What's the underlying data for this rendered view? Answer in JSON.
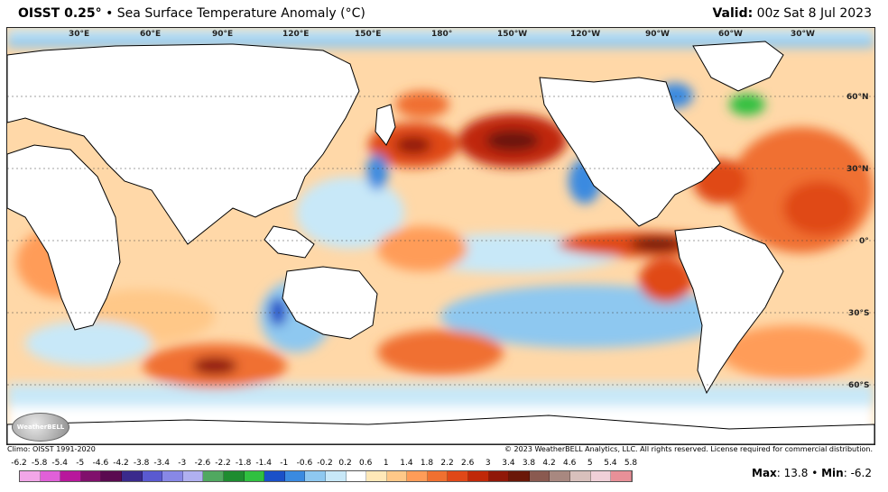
{
  "header": {
    "product": "OISST 0.25",
    "degree_symbol": "°",
    "bullet": "•",
    "subtitle": "Sea Surface Temperature Anomaly (°C)",
    "valid_label": "Valid:",
    "valid_time": "00z Sat 8 Jul 2023"
  },
  "map": {
    "lon_labels": [
      "30°E",
      "60°E",
      "90°E",
      "120°E",
      "150°E",
      "180°",
      "150°W",
      "120°W",
      "90°W",
      "60°W",
      "30°W"
    ],
    "lat_labels": [
      "60°N",
      "30°N",
      "0°",
      "30°S",
      "60°S"
    ],
    "logo_text": "WeatherBELL"
  },
  "footer": {
    "climo": "Climo: OISST 1991-2020",
    "copyright": "© 2023 WeatherBELL Analytics, LLC. All rights reserved. License required for commercial distribution."
  },
  "legend": {
    "labels": [
      "-6.2",
      "-5.8",
      "-5.4",
      "-5",
      "-4.6",
      "-4.2",
      "-3.8",
      "-3.4",
      "-3",
      "-2.6",
      "-2.2",
      "-1.8",
      "-1.4",
      "-1",
      "-0.6",
      "-0.2",
      "0.2",
      "0.6",
      "1",
      "1.4",
      "1.8",
      "2.2",
      "2.6",
      "3",
      "3.4",
      "3.8",
      "4.2",
      "4.6",
      "5",
      "5.4",
      "5.8"
    ],
    "colors": [
      "#f2a6e8",
      "#e060d8",
      "#b8189c",
      "#80106c",
      "#5a0a50",
      "#3a2a8c",
      "#5a5ad0",
      "#8888e6",
      "#b0b0f0",
      "#50a860",
      "#1e8c30",
      "#30c040",
      "#1a50c8",
      "#3a8ae0",
      "#8ec8f0",
      "#c8e8f8",
      "#ffffff",
      "#ffe8b8",
      "#ffc888",
      "#ff9c58",
      "#f07030",
      "#e04818",
      "#c02808",
      "#901808",
      "#6a1808",
      "#8a5a50",
      "#a88880",
      "#d8c0bc",
      "#f0d0d8",
      "#e89098",
      "#c85050"
    ]
  },
  "stats": {
    "max_label": "Max",
    "max_value": "13.8",
    "separator": "•",
    "min_label": "Min",
    "min_value": "-6.2"
  }
}
